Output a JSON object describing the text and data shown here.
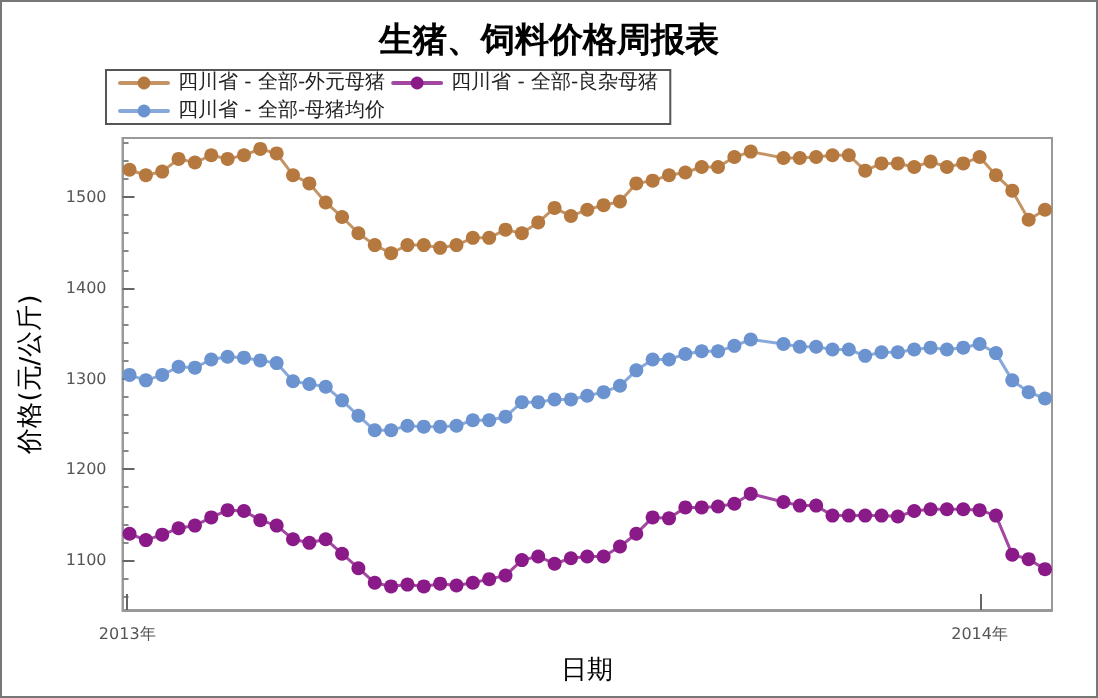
{
  "chart_data": {
    "type": "line",
    "title": "生猪、饲料价格周报表",
    "xlabel": "日期",
    "ylabel": "价格(元/公斤)",
    "x": [
      "2013-01-02",
      "2013-01-09",
      "2013-01-16",
      "2013-01-23",
      "2013-01-30",
      "2013-02-06",
      "2013-02-13",
      "2013-02-20",
      "2013-02-27",
      "2013-03-06",
      "2013-03-13",
      "2013-03-20",
      "2013-03-27",
      "2013-04-03",
      "2013-04-10",
      "2013-04-17",
      "2013-04-24",
      "2013-05-01",
      "2013-05-08",
      "2013-05-15",
      "2013-05-22",
      "2013-05-29",
      "2013-06-05",
      "2013-06-12",
      "2013-06-19",
      "2013-06-26",
      "2013-07-03",
      "2013-07-10",
      "2013-07-17",
      "2013-07-24",
      "2013-07-31",
      "2013-08-07",
      "2013-08-14",
      "2013-08-21",
      "2013-08-28",
      "2013-09-04",
      "2013-09-11",
      "2013-09-18",
      "2013-09-25",
      "2013-10-09",
      "2013-10-16",
      "2013-10-23",
      "2013-10-30",
      "2013-11-06",
      "2013-11-13",
      "2013-11-20",
      "2013-11-27",
      "2013-12-04",
      "2013-12-11",
      "2013-12-18",
      "2013-12-25",
      "2014-01-01",
      "2014-01-08",
      "2014-01-15",
      "2014-01-22",
      "2014-01-29"
    ],
    "series": [
      {
        "name": "四川省 - 全部-外元母猪",
        "color": "#b5793f",
        "values": [
          1530,
          1524,
          1528,
          1542,
          1538,
          1546,
          1542,
          1546,
          1553,
          1548,
          1524,
          1515,
          1494,
          1478,
          1460,
          1447,
          1438,
          1447,
          1447,
          1444,
          1447,
          1455,
          1455,
          1464,
          1460,
          1472,
          1488,
          1479,
          1486,
          1491,
          1495,
          1515,
          1518,
          1524,
          1527,
          1533,
          1533,
          1544,
          1550,
          1543,
          1543,
          1544,
          1546,
          1546,
          1529,
          1537,
          1537,
          1533,
          1539,
          1533,
          1537,
          1544,
          1524,
          1507,
          1475,
          1486
        ]
      },
      {
        "name": "四川省 - 全部-良杂母猪",
        "color": "#8b1a89",
        "values": [
          1129,
          1122,
          1128,
          1135,
          1138,
          1147,
          1155,
          1154,
          1144,
          1138,
          1123,
          1119,
          1123,
          1107,
          1091,
          1075,
          1071,
          1073,
          1071,
          1074,
          1072,
          1075,
          1079,
          1083,
          1100,
          1104,
          1096,
          1102,
          1104,
          1104,
          1115,
          1129,
          1147,
          1146,
          1158,
          1158,
          1159,
          1162,
          1173,
          1164,
          1160,
          1160,
          1149,
          1149,
          1149,
          1149,
          1148,
          1154,
          1156,
          1156,
          1156,
          1155,
          1149,
          1106,
          1101,
          1090
        ]
      },
      {
        "name": "四川省 - 全部-母猪均价",
        "color": "#6a93d0",
        "values": [
          1304,
          1298,
          1304,
          1313,
          1312,
          1321,
          1324,
          1323,
          1320,
          1317,
          1297,
          1294,
          1291,
          1276,
          1259,
          1243,
          1243,
          1248,
          1247,
          1247,
          1248,
          1254,
          1254,
          1258,
          1274,
          1274,
          1277,
          1277,
          1281,
          1285,
          1292,
          1309,
          1321,
          1321,
          1327,
          1330,
          1330,
          1336,
          1343,
          1338,
          1335,
          1335,
          1332,
          1332,
          1325,
          1329,
          1329,
          1332,
          1334,
          1332,
          1334,
          1338,
          1328,
          1298,
          1285,
          1278
        ]
      }
    ],
    "xlim": [
      "2012-12-30",
      "2014-02-01"
    ],
    "xticks": [
      {
        "value": "2013-01-01",
        "label": "2013年"
      },
      {
        "value": "2014-01-01",
        "label": "2014年"
      }
    ],
    "ylim": [
      1045,
      1565
    ],
    "yticks": [
      1100,
      1200,
      1300,
      1400,
      1500
    ],
    "grid": false,
    "legend": "top",
    "marker": "circle",
    "line_style": "solid"
  }
}
